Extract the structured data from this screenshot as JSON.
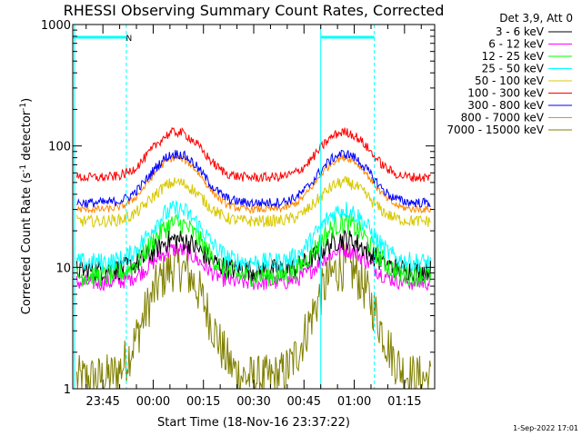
{
  "chart_data": {
    "type": "line",
    "title": "RHESSI Observing Summary Count Rates, Corrected",
    "xlabel": "Start Time (18-Nov-16 23:37:22)",
    "ylabel_parts": [
      "Corrected Count Rate (s",
      "-1",
      " detector",
      "-1",
      ")"
    ],
    "yscale": "log",
    "ylim": [
      1,
      1000
    ],
    "xlim_min": [
      -9,
      99
    ],
    "ytick_labels": [
      {
        "value": 1,
        "label": "1"
      },
      {
        "value": 10,
        "label": "10"
      },
      {
        "value": 100,
        "label": "100"
      },
      {
        "value": 1000,
        "label": "1000"
      }
    ],
    "xtick_labels": [
      {
        "min": 0,
        "label": "23:45"
      },
      {
        "min": 15,
        "label": "00:00"
      },
      {
        "min": 30,
        "label": "00:15"
      },
      {
        "min": 45,
        "label": "00:30"
      },
      {
        "min": 60,
        "label": "00:45"
      },
      {
        "min": 75,
        "label": "01:00"
      },
      {
        "min": 90,
        "label": "01:15"
      }
    ],
    "legend_title": "Det 3,9, Att 0",
    "legend_placement": "right",
    "series": [
      {
        "name": "3 - 6 keV",
        "color": "#000000",
        "base": 9.5,
        "peak": 17,
        "noise": 0.09
      },
      {
        "name": "6 - 12 keV",
        "color": "#ff00ff",
        "base": 7.5,
        "peak": 14,
        "noise": 0.07
      },
      {
        "name": "12 - 25 keV",
        "color": "#00ff00",
        "base": 8.5,
        "peak": 23,
        "noise": 0.09
      },
      {
        "name": "25 - 50 keV",
        "color": "#00ffff",
        "base": 11,
        "peak": 30,
        "noise": 0.08
      },
      {
        "name": "50 - 100 keV",
        "color": "#d8c800",
        "base": 24,
        "peak": 50,
        "noise": 0.05
      },
      {
        "name": "100 - 300 keV",
        "color": "#ff0000",
        "base": 55,
        "peak": 130,
        "noise": 0.04
      },
      {
        "name": "300 - 800 keV",
        "color": "#0000ff",
        "base": 34,
        "peak": 86,
        "noise": 0.04
      },
      {
        "name": "800 - 7000 keV",
        "color": "#ff8800",
        "base": 30,
        "peak": 80,
        "noise": 0.03
      },
      {
        "name": "7000 - 15000 keV",
        "color": "#808000",
        "base": 1.2,
        "peak": 10,
        "noise": 0.2
      }
    ],
    "peaks_min": [
      22,
      72
    ],
    "peak_width_min": 9,
    "annotations": {
      "night_bars_min": [
        [
          -9,
          7
        ],
        [
          65,
          81
        ]
      ],
      "saa_lines_min": [
        7,
        81
      ],
      "flag_label": "N",
      "flag_label_min": 7.8,
      "solid_lines_min": [
        -9,
        65
      ]
    }
  },
  "footer": {
    "timestamp": "1-Sep-2022 17:01"
  }
}
